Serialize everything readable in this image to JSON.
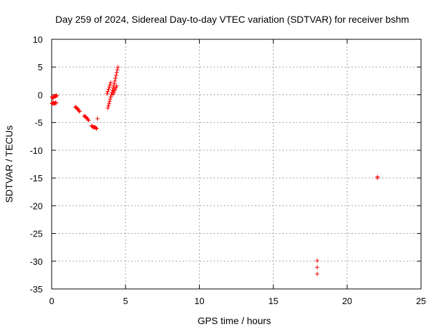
{
  "chart_data": {
    "type": "scatter",
    "title": "Day 259 of 2024, Sidereal Day-to-day VTEC variation (SDTVAR) for receiver bshm",
    "xlabel": "GPS time / hours",
    "ylabel": "SDTVAR / TECUs",
    "xlim": [
      0,
      25
    ],
    "ylim": [
      -35,
      10
    ],
    "x_ticks": [
      0,
      5,
      10,
      15,
      20,
      25
    ],
    "y_ticks": [
      -35,
      -30,
      -25,
      -20,
      -15,
      -10,
      -5,
      0,
      5,
      10
    ],
    "grid": true,
    "marker": "+",
    "color": "#ff0000",
    "series": [
      {
        "name": "SDTVAR",
        "points": [
          [
            0.02,
            -0.4
          ],
          [
            0.06,
            -0.6
          ],
          [
            0.1,
            -0.5
          ],
          [
            0.14,
            -0.3
          ],
          [
            0.18,
            -0.4
          ],
          [
            0.22,
            -0.2
          ],
          [
            0.26,
            -0.3
          ],
          [
            0.3,
            -0.1
          ],
          [
            0.34,
            -0.2
          ],
          [
            0.02,
            -1.5
          ],
          [
            0.06,
            -1.6
          ],
          [
            0.1,
            -1.4
          ],
          [
            0.14,
            -1.5
          ],
          [
            0.18,
            -1.6
          ],
          [
            0.22,
            -1.5
          ],
          [
            0.26,
            -1.4
          ],
          [
            0.3,
            -1.5
          ],
          [
            1.6,
            -2.2
          ],
          [
            1.65,
            -2.3
          ],
          [
            1.7,
            -2.4
          ],
          [
            1.75,
            -2.5
          ],
          [
            1.8,
            -2.7
          ],
          [
            1.85,
            -2.9
          ],
          [
            1.9,
            -3.0
          ],
          [
            2.2,
            -3.8
          ],
          [
            2.25,
            -3.9
          ],
          [
            2.3,
            -4.0
          ],
          [
            2.35,
            -4.1
          ],
          [
            2.4,
            -4.3
          ],
          [
            2.45,
            -4.4
          ],
          [
            2.5,
            -4.6
          ],
          [
            2.7,
            -5.6
          ],
          [
            2.75,
            -5.7
          ],
          [
            2.8,
            -5.8
          ],
          [
            2.85,
            -5.9
          ],
          [
            2.9,
            -5.8
          ],
          [
            2.95,
            -5.9
          ],
          [
            3.0,
            -6.0
          ],
          [
            3.05,
            -6.1
          ],
          [
            3.1,
            -4.3
          ],
          [
            3.8,
            -2.4
          ],
          [
            3.84,
            -2.0
          ],
          [
            3.88,
            -1.6
          ],
          [
            3.92,
            -1.2
          ],
          [
            3.96,
            -0.8
          ],
          [
            4.0,
            -0.4
          ],
          [
            4.04,
            0.0
          ],
          [
            4.08,
            0.4
          ],
          [
            4.12,
            0.8
          ],
          [
            4.16,
            1.2
          ],
          [
            4.2,
            1.6
          ],
          [
            4.24,
            2.0
          ],
          [
            4.28,
            2.5
          ],
          [
            4.32,
            3.0
          ],
          [
            4.36,
            3.5
          ],
          [
            4.4,
            4.0
          ],
          [
            4.44,
            4.5
          ],
          [
            4.48,
            5.0
          ],
          [
            3.75,
            0.2
          ],
          [
            3.8,
            0.6
          ],
          [
            3.85,
            1.0
          ],
          [
            3.9,
            1.4
          ],
          [
            3.95,
            1.8
          ],
          [
            4.0,
            2.2
          ],
          [
            4.15,
            0.1
          ],
          [
            4.2,
            0.4
          ],
          [
            4.25,
            0.7
          ],
          [
            4.3,
            1.0
          ],
          [
            4.35,
            1.3
          ],
          [
            4.4,
            1.6
          ],
          [
            17.97,
            -29.9
          ],
          [
            17.97,
            -31.1
          ],
          [
            17.97,
            -32.3
          ],
          [
            22.05,
            -14.8
          ],
          [
            22.05,
            -15.0
          ]
        ]
      }
    ]
  }
}
